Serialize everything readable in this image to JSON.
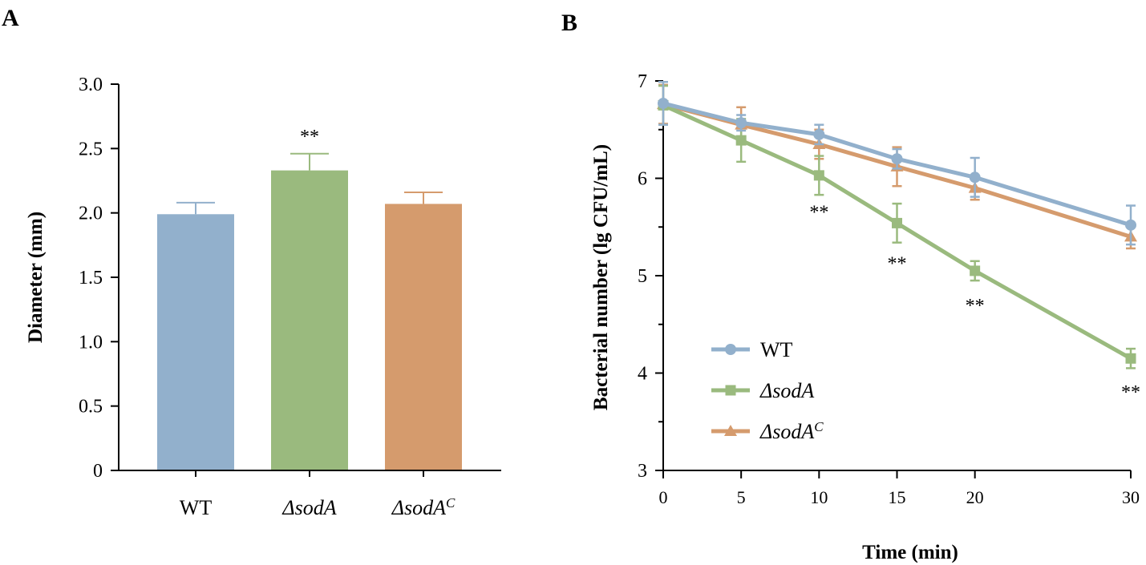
{
  "chart_data": [
    {
      "panel_label": "A",
      "type": "bar",
      "title": "",
      "xlabel": "",
      "ylabel": "Diameter (mm)",
      "ylim": [
        0,
        3.0
      ],
      "yticks": [
        0,
        0.5,
        1.0,
        1.5,
        2.0,
        2.5,
        3.0
      ],
      "ytick_labels": [
        "0",
        "0.5",
        "1.0",
        "1.5",
        "2.0",
        "2.5",
        "3.0"
      ],
      "categories": [
        {
          "name": "WT",
          "sup": ""
        },
        {
          "name": "ΔsodA",
          "sup": ""
        },
        {
          "name": "ΔsodA",
          "sup": "C"
        }
      ],
      "values": [
        1.99,
        2.33,
        2.07
      ],
      "errors": [
        0.09,
        0.13,
        0.09
      ],
      "significance": [
        "",
        "**",
        ""
      ],
      "colors": [
        "#92b0cc",
        "#9aba7e",
        "#d59b6d"
      ],
      "grid": false
    },
    {
      "panel_label": "B",
      "type": "line",
      "title": "",
      "xlabel": "Time (min)",
      "ylabel": "Bacterial number (lg CFU/mL)",
      "x": [
        0,
        5,
        10,
        15,
        20,
        30
      ],
      "xtick_labels": [
        "0",
        "5",
        "10",
        "15",
        "20",
        "30"
      ],
      "xlim": [
        0,
        30
      ],
      "ylim": [
        3,
        7
      ],
      "yticks": [
        3,
        4,
        5,
        6,
        7
      ],
      "ytick_labels": [
        "3",
        "4",
        "5",
        "6",
        "7"
      ],
      "grid": false,
      "legend_position": "bottom-left",
      "series": [
        {
          "name": "WT",
          "sup": "",
          "marker": "circle",
          "color": "#92b0cc",
          "values": [
            6.77,
            6.57,
            6.45,
            6.2,
            6.01,
            5.52
          ],
          "errors": [
            0.22,
            0.08,
            0.1,
            0.1,
            0.2,
            0.2
          ]
        },
        {
          "name": "ΔsodA",
          "sup": "",
          "marker": "square",
          "color": "#9aba7e",
          "values": [
            6.75,
            6.39,
            6.03,
            5.54,
            5.05,
            4.15
          ],
          "errors": [
            0.2,
            0.22,
            0.2,
            0.2,
            0.1,
            0.1
          ]
        },
        {
          "name": "ΔsodA",
          "sup": "C",
          "marker": "triangle",
          "color": "#d59b6d",
          "values": [
            6.76,
            6.55,
            6.35,
            6.12,
            5.9,
            5.4
          ],
          "errors": [
            0.2,
            0.18,
            0.15,
            0.2,
            0.12,
            0.12
          ]
        }
      ],
      "annotations": [
        {
          "text": "**",
          "x": 10,
          "y": 5.59
        },
        {
          "text": "**",
          "x": 15,
          "y": 5.06
        },
        {
          "text": "**",
          "x": 20,
          "y": 4.63
        },
        {
          "text": "**",
          "x": 30,
          "y": 3.74
        }
      ]
    }
  ]
}
